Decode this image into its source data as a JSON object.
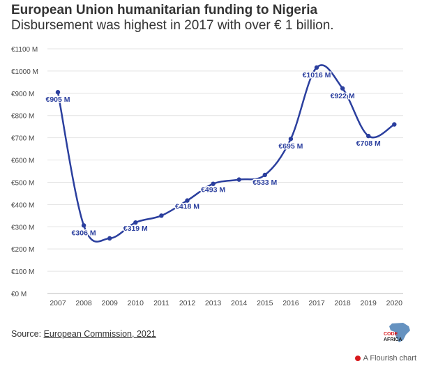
{
  "title": "European Union humanitarian funding to Nigeria",
  "subtitle": "Disbursement was highest in 2017 with over € 1 billion.",
  "source_prefix": "Source: ",
  "source_link": "European Commission, 2021",
  "logo_text_1": "CODE",
  "logo_text_2": "AFRICA",
  "flourish_credit": "A Flourish chart",
  "colors": {
    "line": "#2b3f9e",
    "grid": "#e3e3e3",
    "axis_text": "#444444",
    "logo_red": "#d7191c",
    "logo_blue": "#4a7fb5"
  },
  "chart_data": {
    "type": "line",
    "title": "European Union humanitarian funding to Nigeria",
    "subtitle": "Disbursement was highest in 2017 with over € 1 billion.",
    "xlabel": "",
    "ylabel": "",
    "ylim": [
      0,
      1100
    ],
    "y_ticks": [
      0,
      100,
      200,
      300,
      400,
      500,
      600,
      700,
      800,
      900,
      1000,
      1100
    ],
    "y_tick_labels": [
      "€0 M",
      "€100 M",
      "€200 M",
      "€300 M",
      "€400 M",
      "€500 M",
      "€600 M",
      "€700 M",
      "€800 M",
      "€900 M",
      "€1000 M",
      "€1100 M"
    ],
    "grid": true,
    "categories": [
      "2007",
      "2008",
      "2009",
      "2010",
      "2011",
      "2012",
      "2013",
      "2014",
      "2015",
      "2016",
      "2017",
      "2018",
      "2019",
      "2020"
    ],
    "values": [
      905,
      306,
      248,
      319,
      350,
      418,
      493,
      512,
      533,
      695,
      1016,
      922,
      708,
      760
    ],
    "point_labels": [
      "€905 M",
      "€306 M",
      "",
      "€319 M",
      "",
      "€418 M",
      "€493 M",
      "",
      "€533 M",
      "€695 M",
      "€1016 M",
      "€922 M",
      "€708 M",
      ""
    ]
  }
}
